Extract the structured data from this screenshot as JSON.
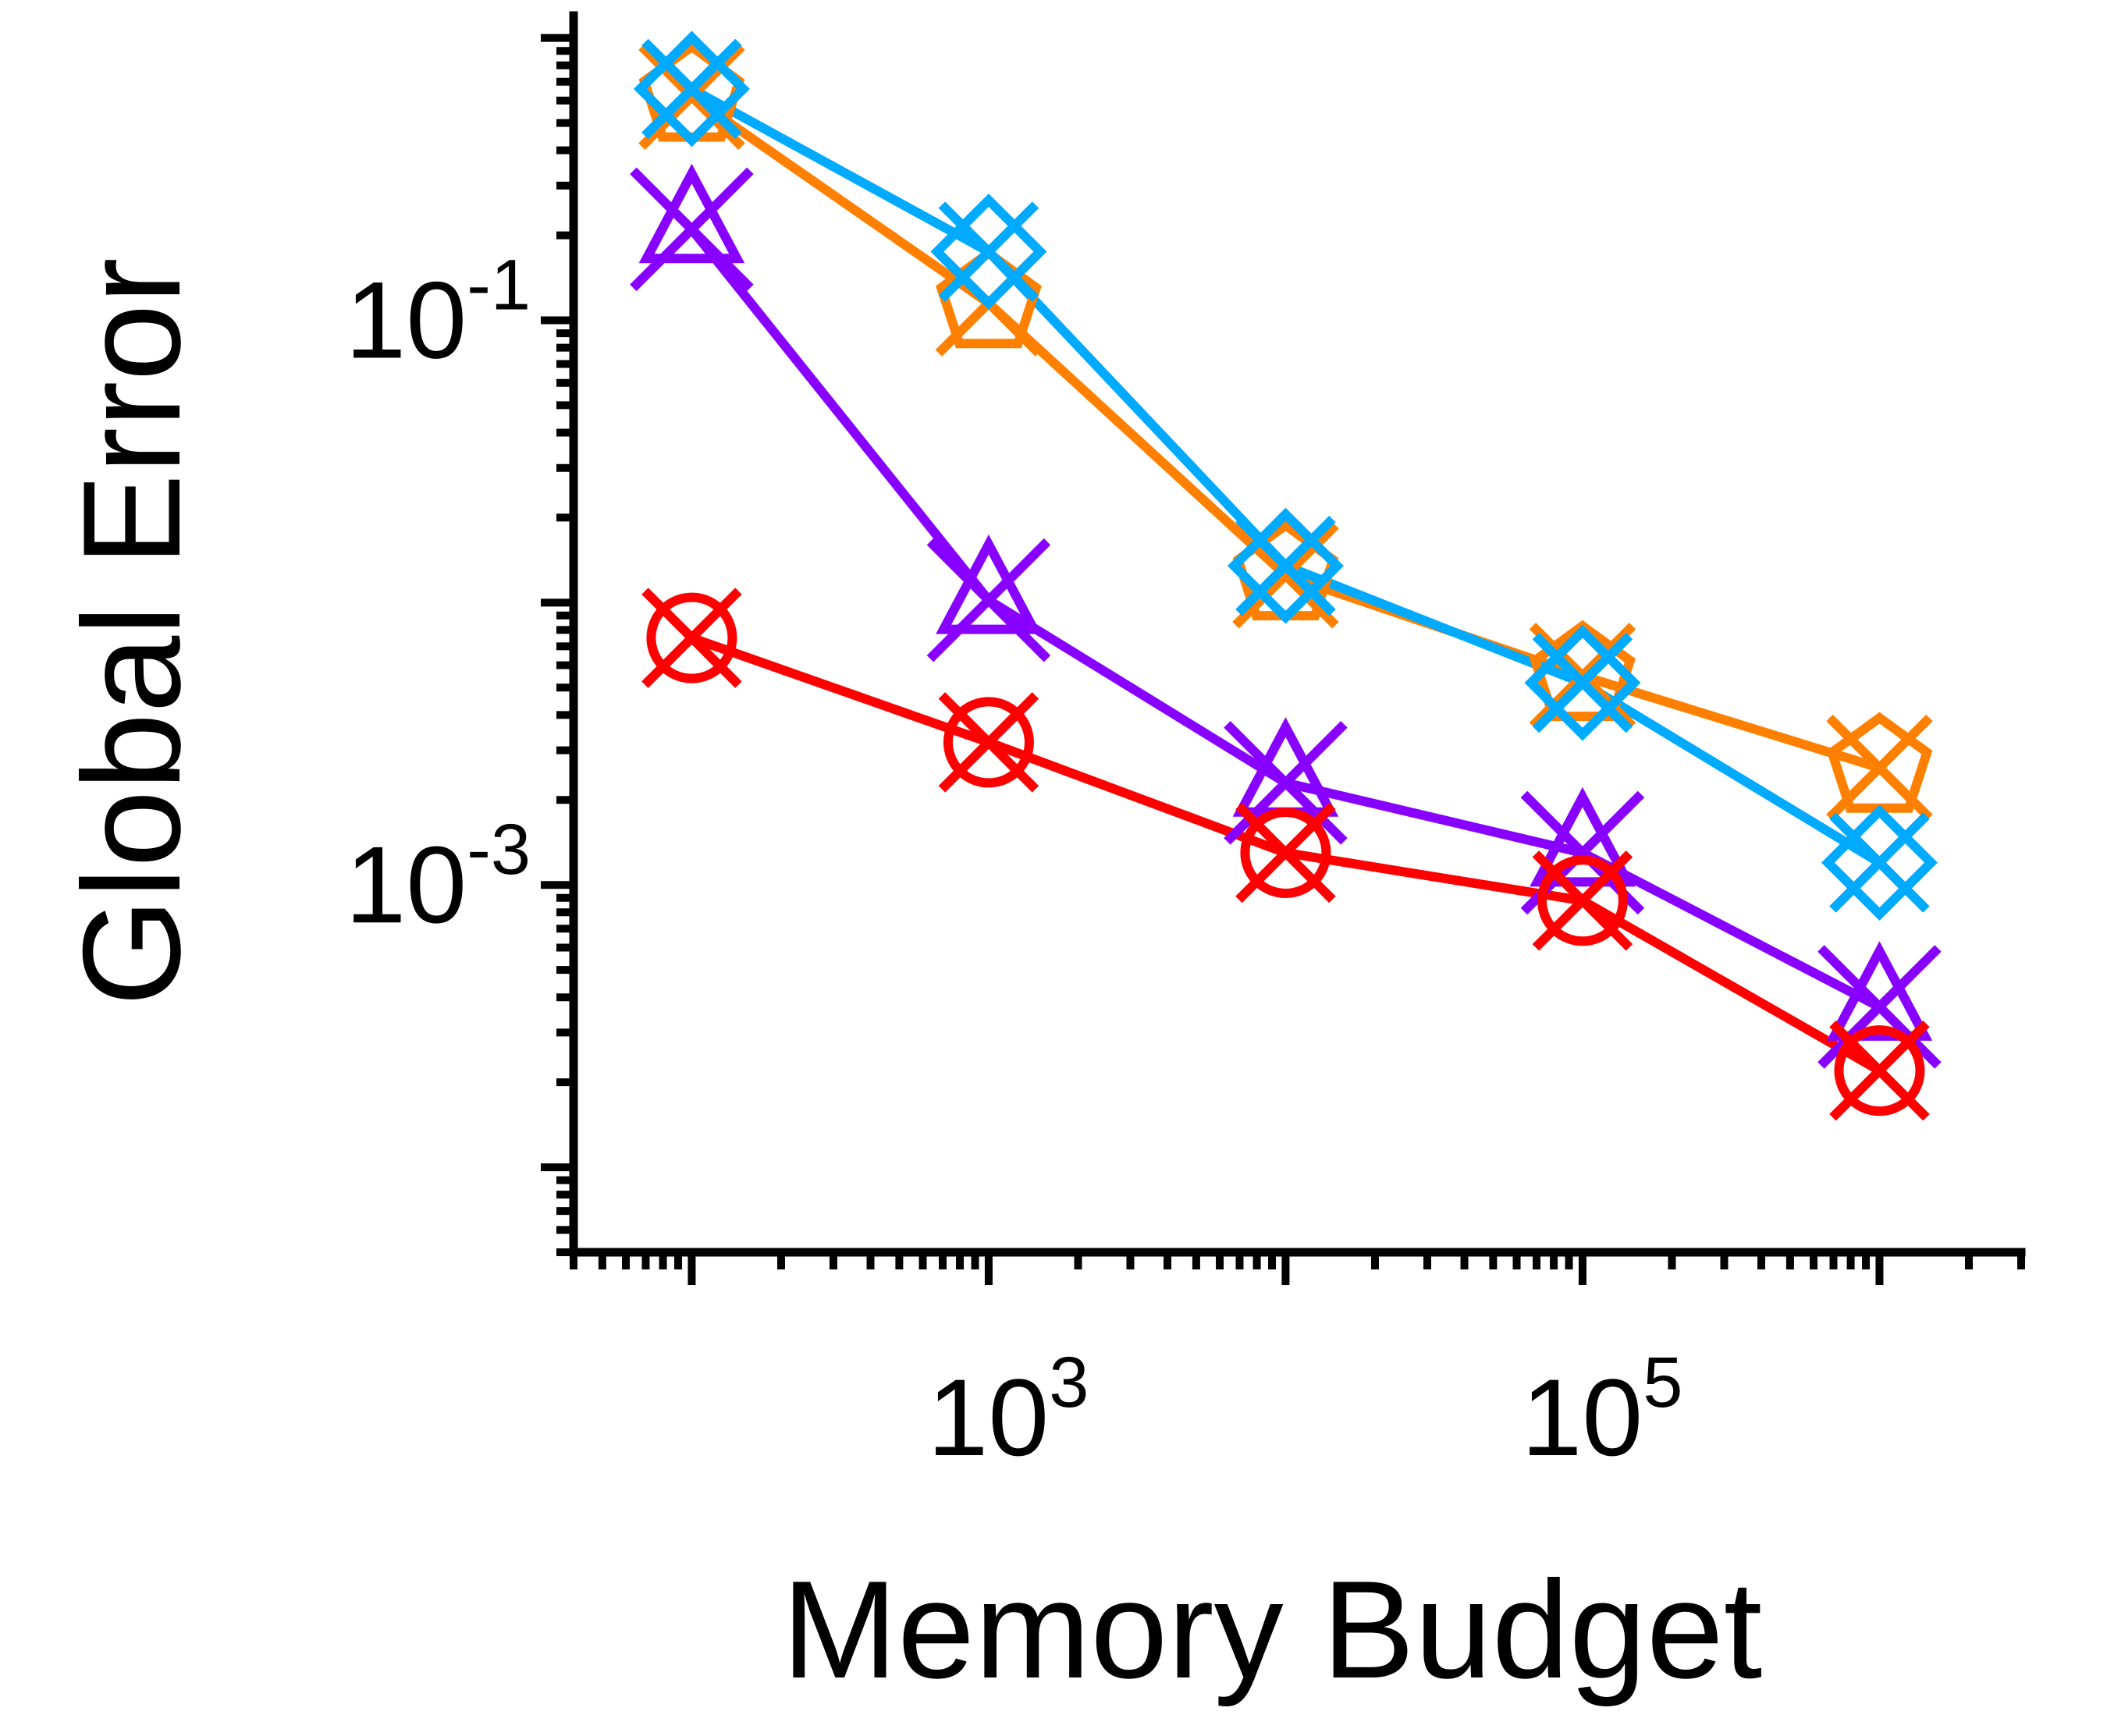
{
  "chart_data": {
    "type": "line",
    "xlabel": "Memory Budget",
    "ylabel": "Global Error",
    "x_scale": "log",
    "y_scale": "log",
    "x": [
      100,
      1000,
      10000,
      100000,
      1000000
    ],
    "xlim": [
      40,
      3000000
    ],
    "ylim": [
      5e-05,
      1.2
    ],
    "x_ticks": [
      {
        "value": 1000,
        "base": "10",
        "exp": "3"
      },
      {
        "value": 100000,
        "base": "10",
        "exp": "5"
      }
    ],
    "y_ticks": [
      {
        "value": 0.1,
        "base": "10",
        "exp": "-1"
      },
      {
        "value": 0.001,
        "base": "10",
        "exp": "-3"
      }
    ],
    "grid": false,
    "series": [
      {
        "color": "#FF8000",
        "marker": "pentagon-x",
        "values": [
          0.62,
          0.115,
          0.0125,
          0.0055,
          0.0026
        ]
      },
      {
        "color": "#00AAFF",
        "marker": "diamond-x",
        "values": [
          0.66,
          0.175,
          0.0135,
          0.0052,
          0.0012
        ]
      },
      {
        "color": "#8800FF",
        "marker": "triangle-x",
        "values": [
          0.21,
          0.0102,
          0.0023,
          0.0013,
          0.00037
        ]
      },
      {
        "color": "#FF0000",
        "marker": "circle-x",
        "values": [
          0.0075,
          0.0032,
          0.0013,
          0.00088,
          0.00022
        ]
      }
    ]
  }
}
